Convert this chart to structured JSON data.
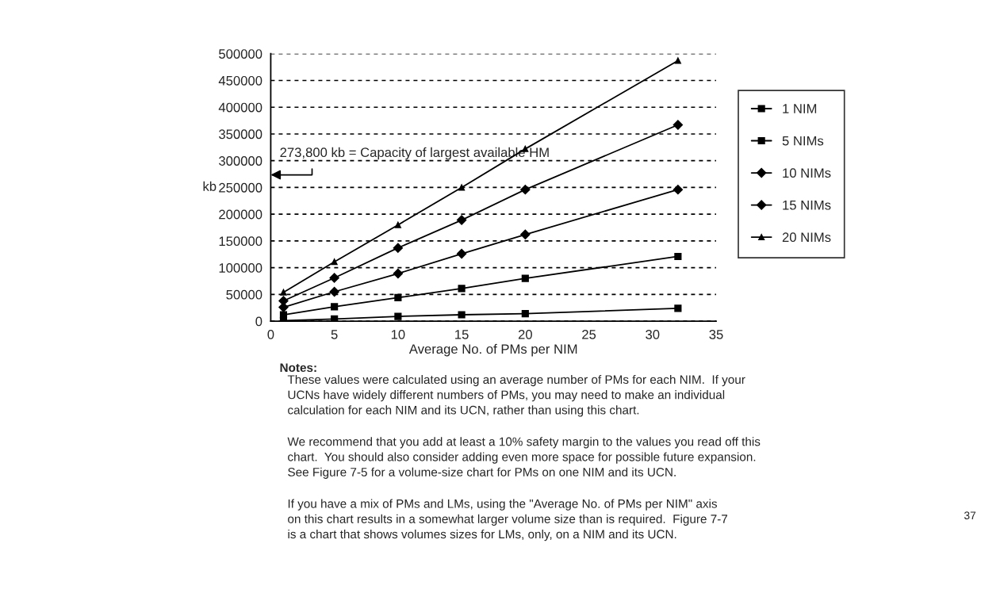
{
  "chart_data": {
    "type": "line",
    "xlabel": "Average No. of PMs per NIM",
    "ylabel": "kb",
    "x": [
      1,
      5,
      10,
      15,
      20,
      32
    ],
    "series": [
      {
        "name": "1 NIM",
        "color": "#000000",
        "marker": "square",
        "values": [
          1000,
          4000,
          9000,
          12000,
          14000,
          24000
        ]
      },
      {
        "name": "5 NIMs",
        "color": "#000000",
        "marker": "square",
        "values": [
          12000,
          27000,
          44000,
          61000,
          80000,
          121000
        ]
      },
      {
        "name": "10 NIMs",
        "color": "#000000",
        "marker": "diamond",
        "values": [
          26000,
          55000,
          89000,
          126000,
          162000,
          246000
        ]
      },
      {
        "name": "15 NIMs",
        "color": "#000000",
        "marker": "diamond",
        "values": [
          38000,
          81000,
          137000,
          189000,
          246000,
          367000
        ]
      },
      {
        "name": "20 NIMs",
        "color": "#000000",
        "marker": "triangle",
        "values": [
          54000,
          111000,
          180000,
          250000,
          322000,
          487000
        ]
      }
    ],
    "xlim": [
      0,
      35
    ],
    "xticks": [
      0,
      5,
      10,
      15,
      20,
      25,
      30,
      35
    ],
    "ylim": [
      0,
      500000
    ],
    "yticks": [
      0,
      50000,
      100000,
      150000,
      200000,
      250000,
      300000,
      350000,
      400000,
      450000,
      500000
    ],
    "grid": "y",
    "legend": "right",
    "line_style": "solid",
    "annotations": [
      "273,800 kb = Capacity of largest available HM",
      "Notes:",
      "These values were calculated using an average number of PMs for each NIM.  If your\nUCNs have widely different numbers of PMs, you may need to make an individual\ncalculation for each NIM and its UCN, rather than using this chart.",
      "We recommend that you add at least a 10% safety margin to the values you read off this\nchart.  You should also consider adding even more space for possible future expansion.\nSee Figure 7-5 for a volume-size chart for PMs on one NIM and its UCN.",
      "If you have a mix of PMs and LMs, using the \"Average No. of PMs per NIM\" axis\non this chart results in a somewhat larger volume size than is required.  Figure 7-7\nis a chart that shows volumes sizes for LMs, only, on a NIM and its UCN.",
      "37"
    ]
  }
}
